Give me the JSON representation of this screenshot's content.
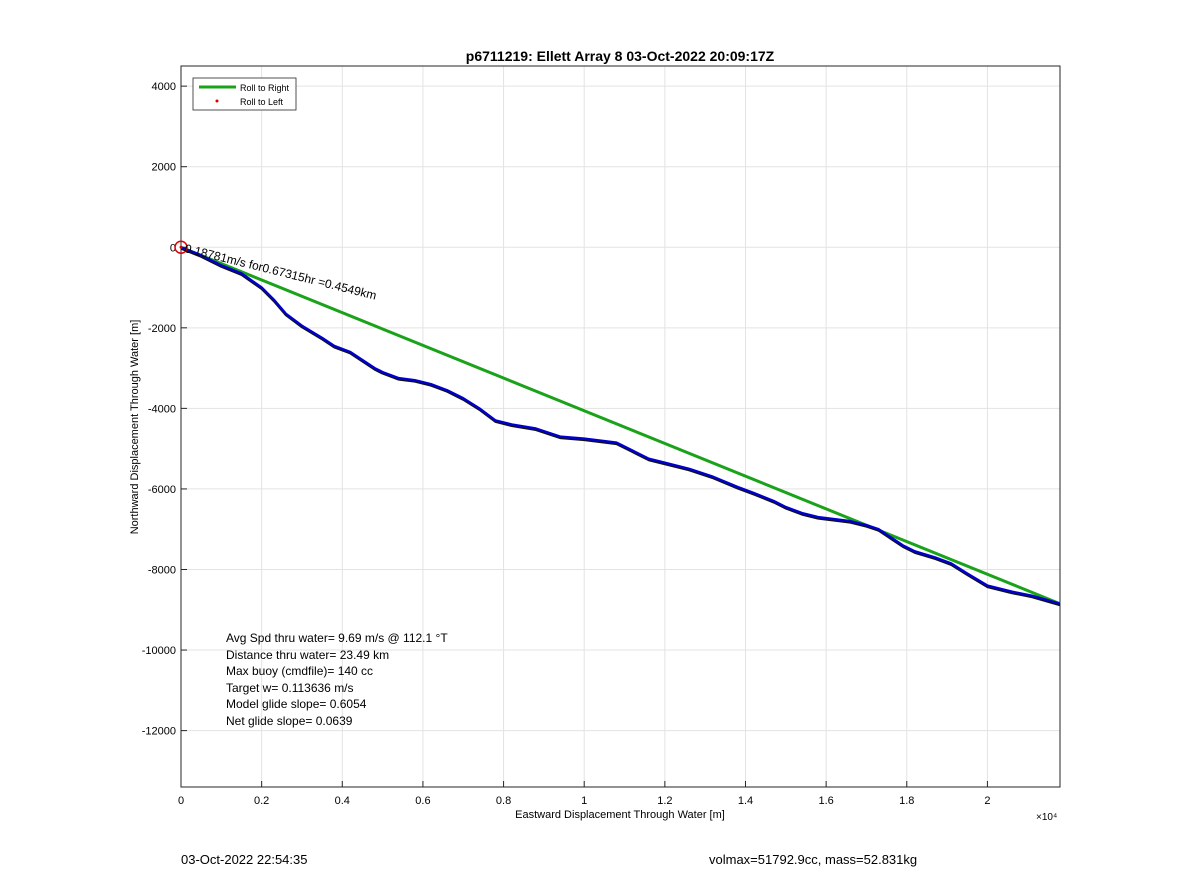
{
  "chart_data": {
    "type": "line",
    "title": "p6711219: Ellett Array 8 03-Oct-2022 20:09:17Z",
    "xlabel": "Eastward Displacement Through Water [m]",
    "ylabel": "Northward Displacement Through Water [m]",
    "x_exponent_label": "×10⁴",
    "xlim": [
      0,
      21800
    ],
    "ylim": [
      -13400,
      4500
    ],
    "xticks": [
      0,
      2000,
      4000,
      6000,
      8000,
      10000,
      12000,
      14000,
      16000,
      18000,
      20000
    ],
    "xtick_labels": [
      "0",
      "0.2",
      "0.4",
      "0.6",
      "0.8",
      "1",
      "1.2",
      "1.4",
      "1.6",
      "1.8",
      "2"
    ],
    "yticks": [
      4000,
      2000,
      0,
      -2000,
      -4000,
      -6000,
      -8000,
      -10000,
      -12000
    ],
    "ytick_labels": [
      "4000",
      "2000",
      "0",
      "-2000",
      "-4000",
      "-6000",
      "-8000",
      "-10000",
      "-12000"
    ],
    "grid": true,
    "legend_position": "top-left",
    "legend": [
      {
        "label": "Roll to Right",
        "color": "#1aa31a",
        "style": "line"
      },
      {
        "label": "Roll to Left",
        "color": "#e00000",
        "style": "dot"
      }
    ],
    "series": [
      {
        "name": "Roll to Right",
        "color": "#1aa31a",
        "x": [
          0,
          21800
        ],
        "y": [
          0,
          -8850
        ]
      },
      {
        "color": "#0000cc",
        "x": [
          0,
          500,
          1000,
          1500,
          2000,
          2300,
          2600,
          3000,
          3500,
          3800,
          4200,
          4500,
          4800,
          5000,
          5400,
          5800,
          6200,
          6600,
          7000,
          7400,
          7800,
          8200,
          8800,
          9400,
          10000,
          10400,
          10800,
          11200,
          11600,
          12000,
          12600,
          13200,
          13800,
          14200,
          14700,
          15000,
          15400,
          15800,
          16200,
          16600,
          17000,
          17300,
          17600,
          17900,
          18200,
          18700,
          19100,
          19500,
          20000,
          20600,
          21100,
          21800
        ],
        "y": [
          0,
          -200,
          -450,
          -650,
          -1000,
          -1300,
          -1650,
          -1950,
          -2250,
          -2450,
          -2600,
          -2800,
          -3000,
          -3100,
          -3250,
          -3300,
          -3400,
          -3550,
          -3750,
          -4000,
          -4300,
          -4400,
          -4500,
          -4700,
          -4750,
          -4800,
          -4850,
          -5050,
          -5250,
          -5350,
          -5500,
          -5700,
          -5950,
          -6100,
          -6300,
          -6450,
          -6600,
          -6700,
          -6750,
          -6800,
          -6900,
          -7000,
          -7200,
          -7400,
          -7550,
          -7700,
          -7850,
          -8100,
          -8400,
          -8550,
          -8650,
          -8850
        ]
      }
    ],
    "start_marker": {
      "x": 0,
      "y": 0,
      "color": "#e00000"
    },
    "annotations": [
      {
        "text": "Avg Spd thru water=  9.69 m/s @ 112.1 °T"
      },
      {
        "text": "Distance thru water= 23.49 km"
      },
      {
        "text": "Max buoy (cmdfile)= 140 cc"
      },
      {
        "text": "Target w= 0.113636 m/s"
      },
      {
        "text": "Model glide slope= 0.6054"
      },
      {
        "text": "Net glide slope= 0.0639"
      }
    ],
    "rotated_annotation": {
      "text": "0.18781m/s for0.67315hr =0.4549km",
      "angle": 14
    }
  },
  "footer": {
    "timestamp": "03-Oct-2022 22:54:35",
    "stats": "volmax=51792.9cc, mass=52.831kg"
  }
}
